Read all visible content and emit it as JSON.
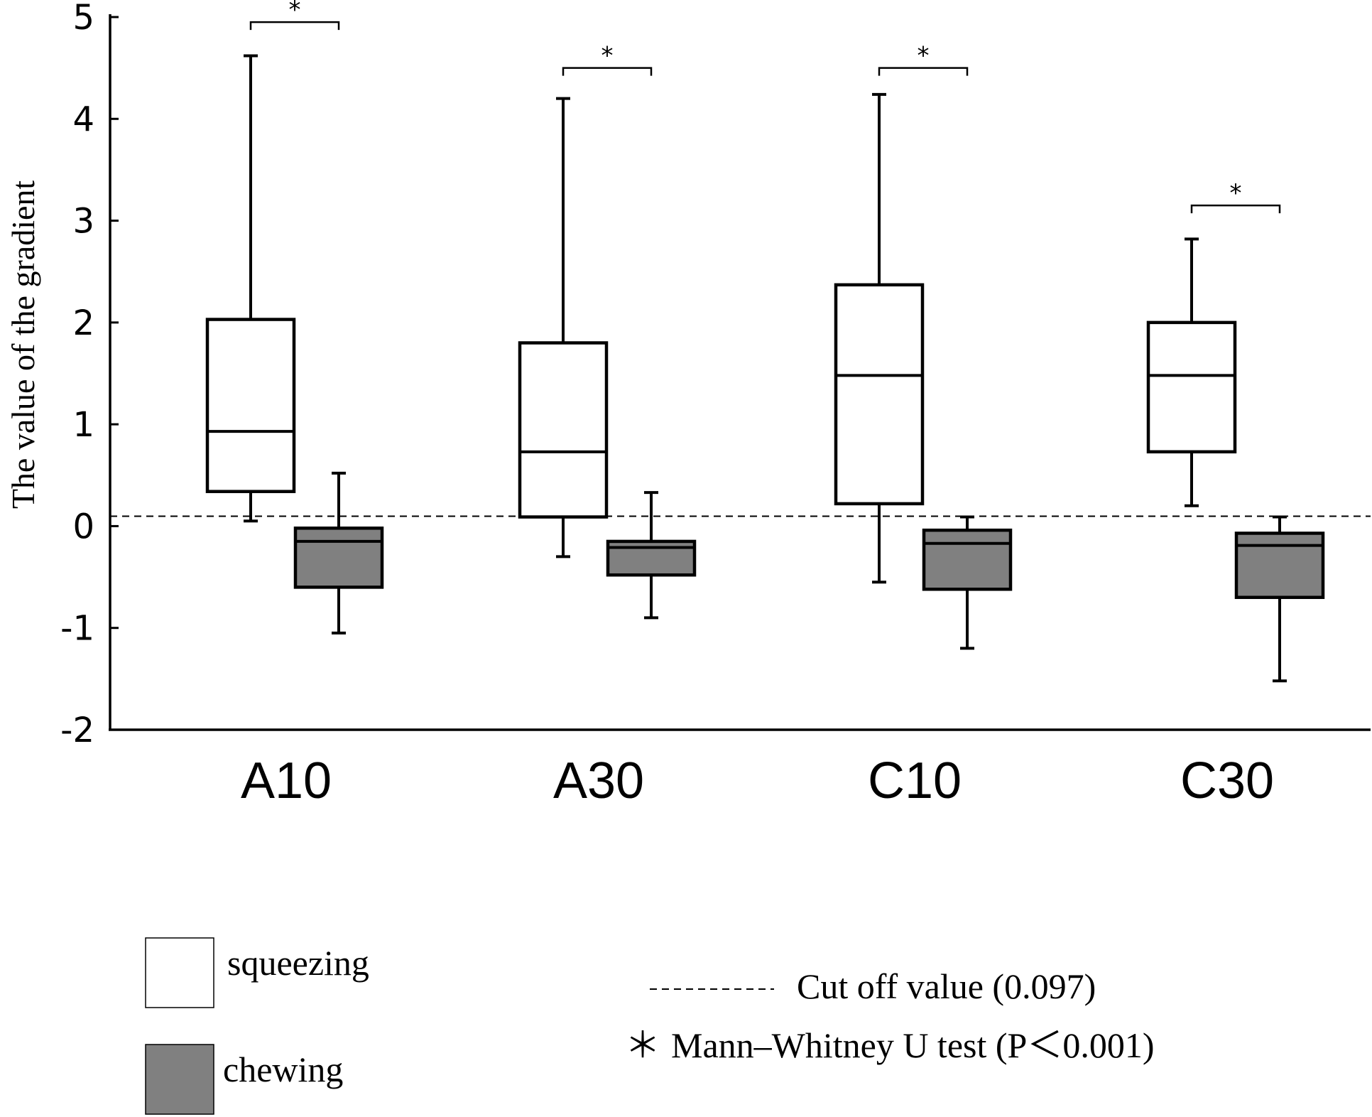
{
  "chart_data": {
    "type": "boxplot",
    "ylabel": "The value of the gradient",
    "xlabel": "",
    "ylim": [
      -2,
      5
    ],
    "yticks": [
      5,
      4,
      3,
      2,
      1,
      0,
      -1,
      -2
    ],
    "ytick_labels": [
      "5",
      "4",
      "3",
      "2",
      "1",
      "0",
      "-1",
      "-2"
    ],
    "categories": [
      "A10",
      "A30",
      "C10",
      "C30"
    ],
    "series": [
      {
        "name": "squeezing",
        "color": "#ffffff",
        "boxes": [
          {
            "whisker_low": 0.05,
            "q1": 0.34,
            "median": 0.93,
            "q3": 2.03,
            "whisker_high": 4.62
          },
          {
            "whisker_low": -0.3,
            "q1": 0.09,
            "median": 0.73,
            "q3": 1.8,
            "whisker_high": 4.2
          },
          {
            "whisker_low": -0.55,
            "q1": 0.22,
            "median": 1.48,
            "q3": 2.37,
            "whisker_high": 4.24
          },
          {
            "whisker_low": 0.2,
            "q1": 0.73,
            "median": 1.48,
            "q3": 2.0,
            "whisker_high": 2.82
          }
        ]
      },
      {
        "name": "chewing",
        "color": "#808080",
        "boxes": [
          {
            "whisker_low": -1.05,
            "q1": -0.6,
            "median": -0.15,
            "q3": -0.02,
            "whisker_high": 0.52
          },
          {
            "whisker_low": -0.9,
            "q1": -0.48,
            "median": -0.21,
            "q3": -0.15,
            "whisker_high": 0.33
          },
          {
            "whisker_low": -1.2,
            "q1": -0.62,
            "median": -0.17,
            "q3": -0.04,
            "whisker_high": 0.09
          },
          {
            "whisker_low": -1.52,
            "q1": -0.7,
            "median": -0.19,
            "q3": -0.07,
            "whisker_high": 0.09
          }
        ]
      }
    ],
    "reference_line": {
      "value": 0.097,
      "style": "dashed",
      "label": "Cut off value (0.097)"
    },
    "significance": {
      "symbol": "*",
      "bracket_levels": [
        4.95,
        4.5,
        4.5,
        3.15
      ],
      "note_symbol": "＊",
      "note": "Mann–Whitney U test (P＜0.001)"
    },
    "legend": {
      "placement": "bottom",
      "entries": [
        {
          "label": "squeezing",
          "color": "#ffffff"
        },
        {
          "label": "chewing",
          "color": "#808080"
        }
      ]
    }
  }
}
